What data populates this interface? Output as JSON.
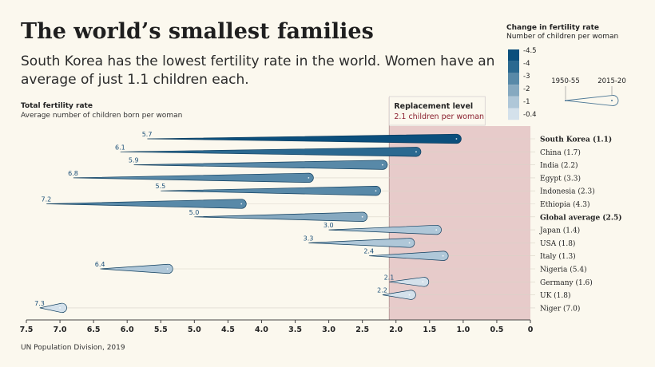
{
  "header": {
    "title": "The world’s smallest families",
    "subtitle": "South Korea has the lowest fertility rate in the world. Women have an average of just 1.1 children each."
  },
  "axis": {
    "label": "Total fertility rate",
    "sublabel": "Average number of children born per woman"
  },
  "source": "UN Population Division, 2019",
  "legend": {
    "title": "Change in fertility rate",
    "subtitle": "Number of children per woman",
    "scale_labels": [
      "-4.5",
      "-4",
      "-3",
      "-2",
      "-1",
      "-0.4"
    ],
    "scale_colors": [
      "#0b4f7c",
      "#2b6990",
      "#5889a8",
      "#86a9c0",
      "#afc7d8",
      "#d4e1eb"
    ],
    "start_label": "1950-55",
    "end_label": "2015-20"
  },
  "replacement": {
    "label": "Replacement level",
    "sublabel": "2.1 children per woman",
    "value": 2.1
  },
  "chart_data": {
    "type": "bar",
    "title": "The world’s smallest families",
    "xlabel": "Total fertility rate",
    "xlim": [
      7.5,
      0
    ],
    "xticks": [
      "7.5",
      "7.0",
      "6.5",
      "6.0",
      "5.5",
      "5.0",
      "4.5",
      "4.0",
      "3.5",
      "3.0",
      "2.5",
      "2.0",
      "1.5",
      "1.0",
      "0.5",
      "0"
    ],
    "series": [
      {
        "name": "South Korea",
        "label": "South Korea (1.1)",
        "start": 5.7,
        "start_label": "5.7",
        "end": 1.1,
        "bold": true
      },
      {
        "name": "China",
        "label": "China (1.7)",
        "start": 6.1,
        "start_label": "6.1",
        "end": 1.7,
        "bold": false
      },
      {
        "name": "India",
        "label": "India (2.2)",
        "start": 5.9,
        "start_label": "5.9",
        "end": 2.2,
        "bold": false
      },
      {
        "name": "Egypt",
        "label": "Egypt (3.3)",
        "start": 6.8,
        "start_label": "6.8",
        "end": 3.3,
        "bold": false
      },
      {
        "name": "Indonesia",
        "label": "Indonesia (2.3)",
        "start": 5.5,
        "start_label": "5.5",
        "end": 2.3,
        "bold": false
      },
      {
        "name": "Ethiopia",
        "label": "Ethiopia (4.3)",
        "start": 7.2,
        "start_label": "7.2",
        "end": 4.3,
        "bold": false
      },
      {
        "name": "Global average",
        "label": "Global average (2.5)",
        "start": 5.0,
        "start_label": "5.0",
        "end": 2.5,
        "bold": true
      },
      {
        "name": "Japan",
        "label": "Japan (1.4)",
        "start": 3.0,
        "start_label": "3.0",
        "end": 1.4,
        "bold": false
      },
      {
        "name": "USA",
        "label": "USA (1.8)",
        "start": 3.3,
        "start_label": "3.3",
        "end": 1.8,
        "bold": false
      },
      {
        "name": "Italy",
        "label": "Italy (1.3)",
        "start": 2.4,
        "start_label": "2.4",
        "end": 1.3,
        "bold": false
      },
      {
        "name": "Nigeria",
        "label": "Nigeria (5.4)",
        "start": 6.4,
        "start_label": "6.4",
        "end": 5.4,
        "bold": false
      },
      {
        "name": "Germany",
        "label": "Germany (1.6)",
        "start": 2.1,
        "start_label": "2.1",
        "end": 1.6,
        "bold": false
      },
      {
        "name": "UK",
        "label": "UK (1.8)",
        "start": 2.2,
        "start_label": "2.2",
        "end": 1.8,
        "bold": false
      },
      {
        "name": "Niger",
        "label": "Niger (7.0)",
        "start": 7.3,
        "start_label": "7.3",
        "end": 7.0,
        "bold": false
      }
    ]
  }
}
